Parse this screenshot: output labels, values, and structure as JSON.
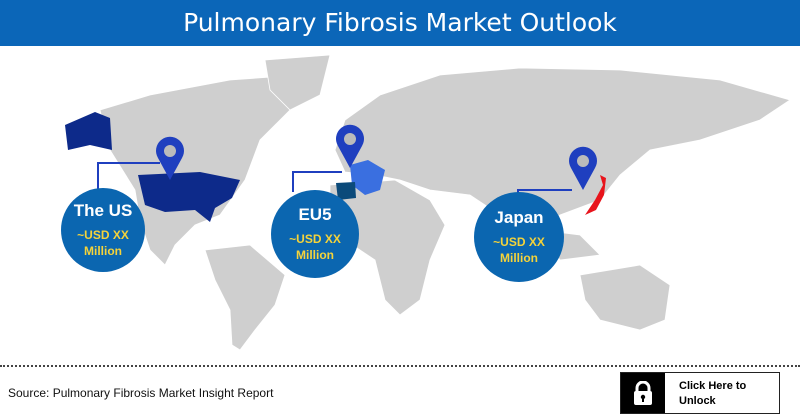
{
  "header": {
    "title": "Pulmonary Fibrosis Market Outlook"
  },
  "regions": [
    {
      "name": "The US",
      "value": "~USD XX",
      "unit": "Million",
      "color": "#0d2a8a"
    },
    {
      "name": "EU5",
      "value": "~USD XX",
      "unit": "Million",
      "color": "#3a6fe0"
    },
    {
      "name": "Japan",
      "value": "~USD XX",
      "unit": "Million",
      "color": "#e8141c"
    }
  ],
  "colors": {
    "header": "#0b66b8",
    "circle": "#0b66b0",
    "value_text": "#f5d33a",
    "land": "#cfcfcf",
    "pin": "#1f3fbf"
  },
  "footer": {
    "source": "Source: Pulmonary Fibrosis Market Insight Report",
    "unlock_label": "Click Here to Unlock",
    "lock_icon": "lock-icon"
  }
}
